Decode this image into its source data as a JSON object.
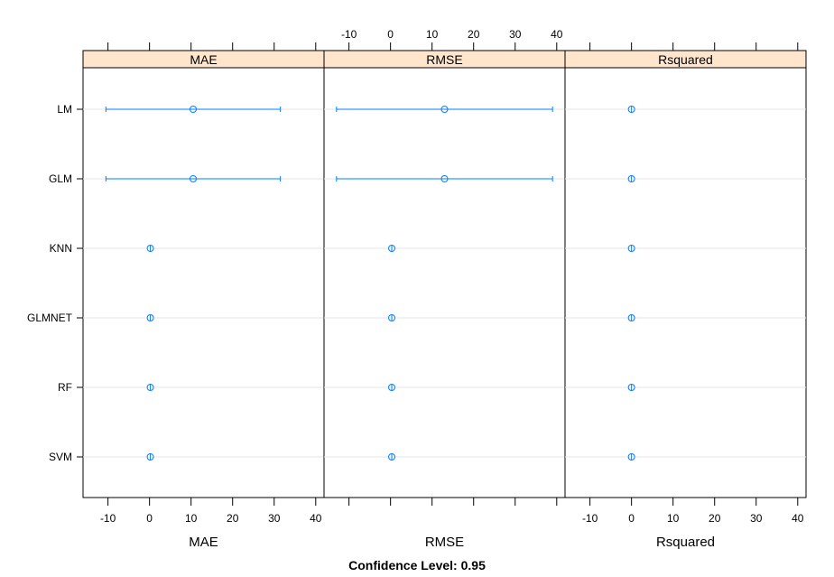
{
  "chart_data": {
    "type": "dotplot-ci",
    "models": [
      "LM",
      "GLM",
      "KNN",
      "GLMNET",
      "RF",
      "SVM"
    ],
    "panels": [
      {
        "metric": "MAE",
        "strip_label": "MAE",
        "xlabel": "MAE",
        "points": [
          {
            "model": "LM",
            "estimate": 10.5,
            "lower": -10.5,
            "upper": 31.5
          },
          {
            "model": "GLM",
            "estimate": 10.5,
            "lower": -10.5,
            "upper": 31.5
          },
          {
            "model": "KNN",
            "estimate": 0.2,
            "lower": 0.2,
            "upper": 0.2
          },
          {
            "model": "GLMNET",
            "estimate": 0.2,
            "lower": 0.2,
            "upper": 0.2
          },
          {
            "model": "RF",
            "estimate": 0.2,
            "lower": 0.2,
            "upper": 0.2
          },
          {
            "model": "SVM",
            "estimate": 0.2,
            "lower": 0.2,
            "upper": 0.2
          }
        ]
      },
      {
        "metric": "RMSE",
        "strip_label": "RMSE",
        "xlabel": "RMSE",
        "points": [
          {
            "model": "LM",
            "estimate": 13.0,
            "lower": -13.0,
            "upper": 39.0
          },
          {
            "model": "GLM",
            "estimate": 13.0,
            "lower": -13.0,
            "upper": 39.0
          },
          {
            "model": "KNN",
            "estimate": 0.3,
            "lower": 0.3,
            "upper": 0.3
          },
          {
            "model": "GLMNET",
            "estimate": 0.3,
            "lower": 0.3,
            "upper": 0.3
          },
          {
            "model": "RF",
            "estimate": 0.3,
            "lower": 0.3,
            "upper": 0.3
          },
          {
            "model": "SVM",
            "estimate": 0.3,
            "lower": 0.3,
            "upper": 0.3
          }
        ]
      },
      {
        "metric": "Rsquared",
        "strip_label": "Rsquared",
        "xlabel": "Rsquared",
        "points": [
          {
            "model": "LM",
            "estimate": 0.0,
            "lower": 0.0,
            "upper": 0.0
          },
          {
            "model": "GLM",
            "estimate": 0.0,
            "lower": 0.0,
            "upper": 0.0
          },
          {
            "model": "KNN",
            "estimate": 0.0,
            "lower": 0.0,
            "upper": 0.0
          },
          {
            "model": "GLMNET",
            "estimate": 0.0,
            "lower": 0.0,
            "upper": 0.0
          },
          {
            "model": "RF",
            "estimate": 0.0,
            "lower": 0.0,
            "upper": 0.0
          },
          {
            "model": "SVM",
            "estimate": 0.0,
            "lower": 0.0,
            "upper": 0.0
          }
        ]
      }
    ],
    "xlim": [
      -16,
      42
    ],
    "xticks": [
      -10,
      0,
      10,
      20,
      30,
      40
    ],
    "tick_labels": [
      "-10",
      "0",
      "10",
      "20",
      "30",
      "40"
    ],
    "caption": "Confidence Level: 0.95",
    "grid": "horizontal",
    "legend": "none",
    "colors": {
      "strip": "#ffe5cc",
      "series": "#0080ff",
      "grid": "#e6e6e6",
      "frame": "#000000"
    }
  }
}
